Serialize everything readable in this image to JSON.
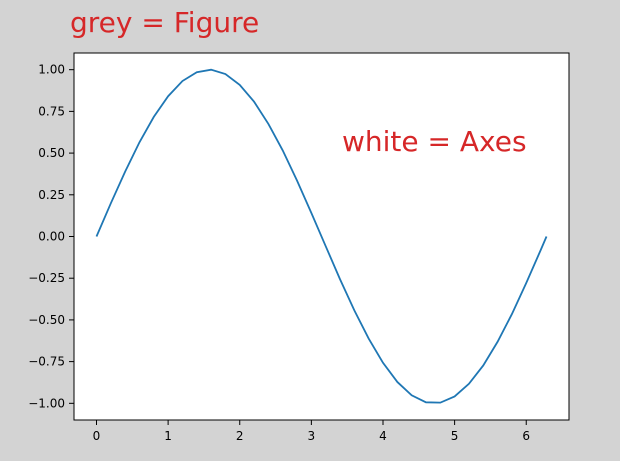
{
  "colors": {
    "figure_background": "#d3d3d3",
    "axes_background": "#ffffff",
    "line": "#1f77b4",
    "annotation": "#d62728",
    "axes_frame": "#000000"
  },
  "chart_data": {
    "type": "line",
    "title": "",
    "xlabel": "",
    "ylabel": "",
    "xlim": [
      -0.314,
      6.597
    ],
    "ylim": [
      -1.1,
      1.1
    ],
    "xticks": [
      0,
      1,
      2,
      3,
      4,
      5,
      6
    ],
    "yticks": [
      -1.0,
      -0.75,
      -0.5,
      -0.25,
      0.0,
      0.25,
      0.5,
      0.75,
      1.0
    ],
    "xtick_labels": [
      "0",
      "1",
      "2",
      "3",
      "4",
      "5",
      "6"
    ],
    "ytick_labels": [
      "−1.00",
      "−0.75",
      "−0.50",
      "−0.25",
      "0.00",
      "0.25",
      "0.50",
      "0.75",
      "1.00"
    ],
    "grid": false,
    "series": [
      {
        "x": [
          0,
          0.2,
          0.4,
          0.6,
          0.8,
          1.0,
          1.2,
          1.4,
          1.6,
          1.8,
          2.0,
          2.2,
          2.4,
          2.6,
          2.8,
          3.0,
          3.2,
          3.4,
          3.6,
          3.8,
          4.0,
          4.2,
          4.4,
          4.6,
          4.8,
          5.0,
          5.2,
          5.4,
          5.6,
          5.8,
          6.0,
          6.2,
          6.283
        ],
        "y": [
          0.0,
          0.199,
          0.389,
          0.565,
          0.717,
          0.841,
          0.932,
          0.985,
          1.0,
          0.974,
          0.909,
          0.808,
          0.675,
          0.516,
          0.335,
          0.141,
          -0.058,
          -0.256,
          -0.443,
          -0.612,
          -0.757,
          -0.872,
          -0.952,
          -0.994,
          -0.996,
          -0.959,
          -0.883,
          -0.773,
          -0.631,
          -0.465,
          -0.279,
          -0.083,
          0.0
        ]
      }
    ],
    "annotations": [
      "grey = Figure",
      "white = Axes"
    ]
  }
}
